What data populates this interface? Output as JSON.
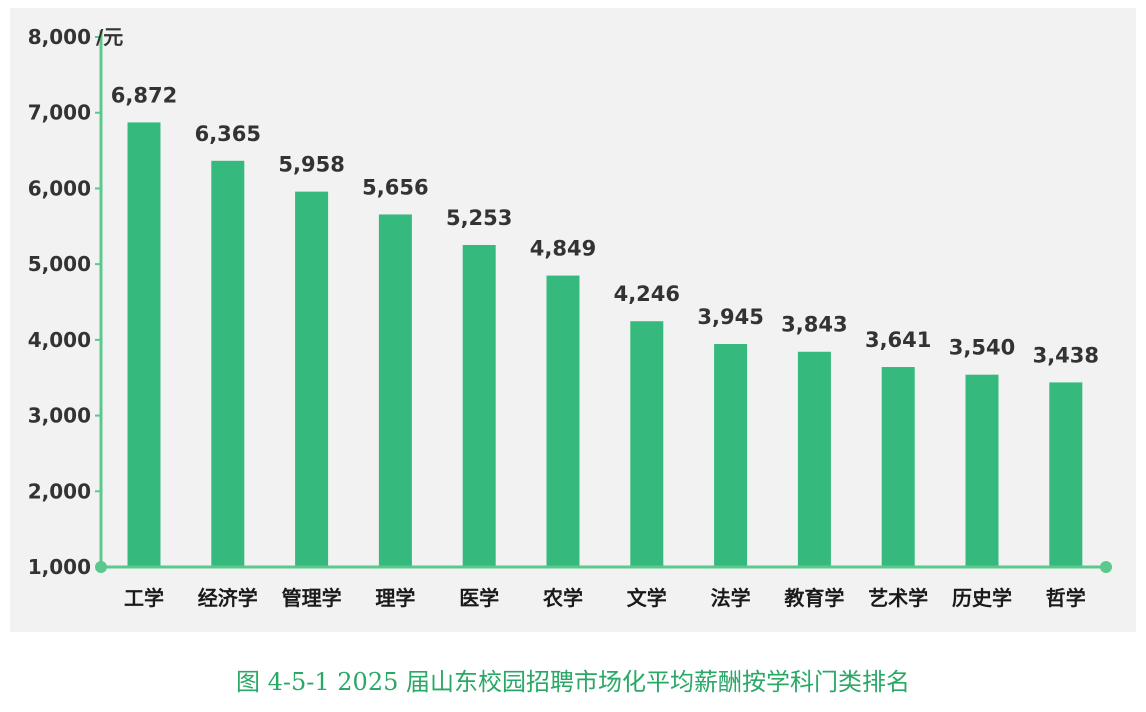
{
  "caption": "图 4-5-1 2025 届山东校园招聘市场化平均薪酬按学科门类排名",
  "chart_data": {
    "type": "bar",
    "unit": "/元",
    "ylim": [
      1000,
      8000
    ],
    "yticks": [
      1000,
      2000,
      3000,
      4000,
      5000,
      6000,
      7000,
      8000
    ],
    "categories": [
      "工学",
      "经济学",
      "管理学",
      "理学",
      "医学",
      "农学",
      "文学",
      "法学",
      "教育学",
      "艺术学",
      "历史学",
      "哲学"
    ],
    "values": [
      6872,
      6365,
      5958,
      5656,
      5253,
      4849,
      4246,
      3945,
      3843,
      3641,
      3540,
      3438
    ],
    "value_labels": [
      "6,872",
      "6,365",
      "5,958",
      "5,656",
      "5,253",
      "4,849",
      "4,246",
      "3,945",
      "3,843",
      "3,641",
      "3,540",
      "3,438"
    ],
    "grid": false,
    "legend": "none",
    "colors": {
      "bar": "#36b97c",
      "axis": "#5cc98c",
      "background": "#f2f2f2",
      "caption": "#2aa866"
    }
  }
}
